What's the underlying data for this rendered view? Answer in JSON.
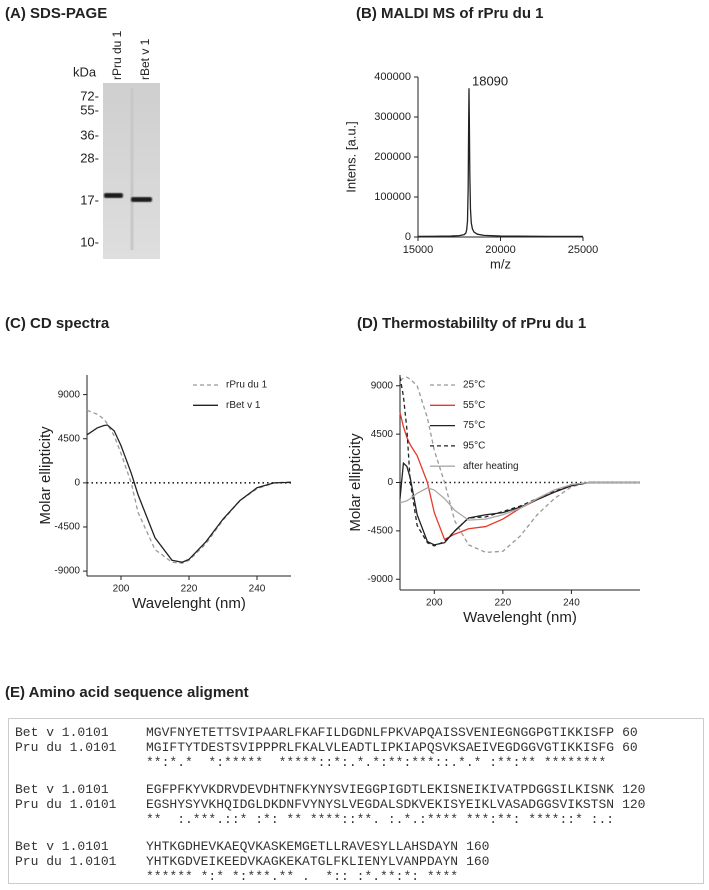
{
  "gel": {
    "title": "(A) SDS-PAGE",
    "unit": "kDa",
    "lanes": [
      "rPru du 1",
      "rBet v 1"
    ],
    "markers": [
      "72-",
      "55-",
      "36-",
      "28-",
      "17-",
      "10-"
    ]
  },
  "chart_data": [
    {
      "type": "line",
      "title": "(B) MALDI MS of rPru du 1",
      "xlabel": "m/z",
      "ylabel": "Intens. [a.u.]",
      "x": [
        15000,
        16000,
        17000,
        17500,
        17800,
        17900,
        17950,
        18000,
        18040,
        18070,
        18090,
        18110,
        18140,
        18180,
        18230,
        18300,
        18400,
        18600,
        19000,
        20000,
        21000,
        22000,
        23000,
        24000,
        25000
      ],
      "series": [
        {
          "color": "#222222",
          "values": [
            1500,
            1800,
            2500,
            3500,
            6000,
            10000,
            18000,
            40000,
            120000,
            280000,
            372000,
            300000,
            160000,
            70000,
            35000,
            20000,
            12000,
            7000,
            4000,
            2500,
            2000,
            1800,
            1600,
            1500,
            1500
          ]
        }
      ],
      "xlim": [
        15000,
        25000
      ],
      "xticks": [
        15000,
        20000,
        25000
      ],
      "ylim": [
        0,
        400000
      ],
      "yticks": [
        0,
        100000,
        200000,
        300000,
        400000
      ],
      "annotations": [
        {
          "text": "18090",
          "x": 18090,
          "y": 372000
        }
      ]
    },
    {
      "type": "line",
      "title": "(C) CD spectra",
      "xlabel": "Wavelenght (nm)",
      "ylabel": "Molar ellipticity",
      "x": [
        190,
        193,
        195,
        196,
        198,
        200,
        203,
        205,
        210,
        215,
        218,
        220,
        225,
        230,
        235,
        240,
        245,
        250
      ],
      "series": [
        {
          "name": "rPru du 1",
          "color": "#999999",
          "dash": true,
          "values": [
            7400,
            7000,
            6500,
            6000,
            4800,
            3000,
            0,
            -3000,
            -6800,
            -8100,
            -8200,
            -7900,
            -6200,
            -3800,
            -1800,
            -600,
            0,
            100
          ]
        },
        {
          "name": "rBet v 1",
          "color": "#222222",
          "dash": false,
          "values": [
            4900,
            5600,
            5850,
            5900,
            5300,
            3800,
            1000,
            -1200,
            -5600,
            -7900,
            -8100,
            -7800,
            -6000,
            -3700,
            -1800,
            -500,
            0,
            50
          ]
        }
      ],
      "xlim": [
        190,
        250
      ],
      "xticks": [
        200,
        220,
        240
      ],
      "ylim": [
        -9500,
        11000
      ],
      "yticks": [
        -9000,
        -4500,
        0,
        4500,
        9000
      ],
      "zero_line": true,
      "legend": "upper right"
    },
    {
      "type": "line",
      "title": "(D) Thermostabililty of rPru du 1",
      "xlabel": "Wavelenght (nm)",
      "ylabel": "Molar ellipticity",
      "x": [
        190,
        191,
        192,
        193,
        195,
        198,
        200,
        203,
        206,
        210,
        215,
        220,
        225,
        230,
        235,
        240,
        245,
        250,
        260
      ],
      "series": [
        {
          "name": "25°C",
          "color": "#999999",
          "dash": true,
          "values": [
            9500,
            9700,
            9800,
            9600,
            9000,
            6000,
            3000,
            0,
            -3600,
            -5800,
            -6500,
            -6400,
            -5000,
            -3000,
            -1500,
            -400,
            0,
            0,
            0
          ]
        },
        {
          "name": "55°C",
          "color": "#e8392a",
          "dash": false,
          "values": [
            6500,
            5200,
            4200,
            3500,
            2500,
            0,
            -2800,
            -5300,
            -4800,
            -4300,
            -4100,
            -3400,
            -2400,
            -1600,
            -900,
            -300,
            0,
            0,
            0
          ]
        },
        {
          "name": "75°C",
          "color": "#222222",
          "dash": false,
          "values": [
            -1500,
            1800,
            1500,
            400,
            -3000,
            -5500,
            -5800,
            -5600,
            -4500,
            -3300,
            -3000,
            -2800,
            -2300,
            -1600,
            -900,
            -300,
            0,
            0,
            0
          ]
        },
        {
          "name": "95°C",
          "color": "#222222",
          "dash": true,
          "values": [
            9800,
            8000,
            5000,
            0,
            -4000,
            -5600,
            -5900,
            -5500,
            -4500,
            -3300,
            -3200,
            -2700,
            -2200,
            -1500,
            -800,
            -200,
            0,
            0,
            0
          ]
        },
        {
          "name": "after heating",
          "color": "#aaaaaa",
          "dash": false,
          "values": [
            -1900,
            -1800,
            -1700,
            -1500,
            -1000,
            -500,
            -700,
            -1500,
            -2600,
            -3500,
            -3400,
            -3000,
            -2400,
            -1500,
            -700,
            -200,
            0,
            0,
            0
          ]
        }
      ],
      "xlim": [
        190,
        260
      ],
      "xticks": [
        200,
        220,
        240
      ],
      "ylim": [
        -10000,
        10000
      ],
      "yticks": [
        -9000,
        -4500,
        0,
        4500,
        9000
      ],
      "zero_line": true,
      "legend": "upper left"
    }
  ],
  "alignment": {
    "title": "(E) Amino acid sequence aligment",
    "blocks": [
      {
        "rows": [
          {
            "name": "Bet v 1.0101",
            "sequence": "MGVFNYETETTSVIPAARLFKAFILDGDNLFPKVAPQAISSVENIEGNGGPGTIKKISFP",
            "end": 60
          },
          {
            "name": "Pru du 1.0101",
            "sequence": "MGIFTYTDESTSVIPPPRLFKALVLEADTLIPKIAPQSVKSAEIVEGDGGVGTIKKISFG",
            "end": 60
          }
        ],
        "consensus": "**:*.*  *:*****  *****::*:.*.*:**:***::.*.* :**:** ********"
      },
      {
        "rows": [
          {
            "name": "Bet v 1.0101",
            "sequence": "EGFPFKYVKDRVDEVDHTNFKYNYSVIEGGPIGDTLEKISNEIKIVATPDGGSILKISNK",
            "end": 120
          },
          {
            "name": "Pru du 1.0101",
            "sequence": "EGSHYSYVKHQIDGLDKDNFVYNYSLVEGDALSDKVEKISYEIKLVASADGGSVIKSTSN",
            "end": 120
          }
        ],
        "consensus": "**  :.***.::* :*: ** ****::**. :.*.:**** ***:**: ****::* :.:"
      },
      {
        "rows": [
          {
            "name": "Bet v 1.0101",
            "sequence": "YHTKGDHEVKAEQVKASKEMGETLLRAVESYLLAHSDAYN",
            "end": 160
          },
          {
            "name": "Pru du 1.0101",
            "sequence": "YHTKGDVEIKEEDVKAGKEKATGLFKLIENYLVANPDAYN",
            "end": 160
          }
        ],
        "consensus": "****** *:* *:***.** .  *:: :*.**:*: ****"
      }
    ]
  }
}
